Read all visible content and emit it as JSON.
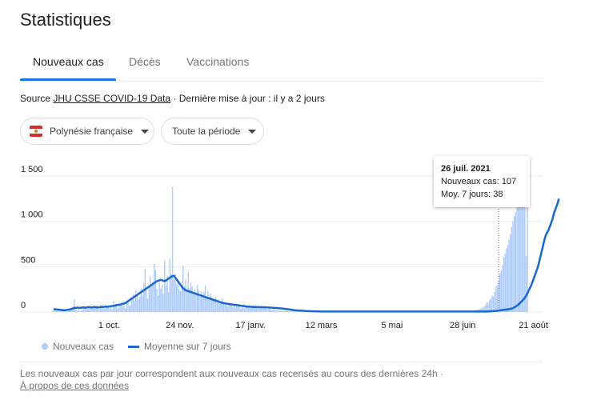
{
  "page": {
    "title": "Statistiques"
  },
  "tabs": [
    {
      "label": "Nouveaux cas",
      "active": true
    },
    {
      "label": "Décès",
      "active": false
    },
    {
      "label": "Vaccinations",
      "active": false
    }
  ],
  "source": {
    "prefix": "Source",
    "link": "JHU CSSE COVID-19 Data",
    "suffix": "· Dernière mise à jour : il y a 2 jours"
  },
  "filters": {
    "region": "Polynésie française",
    "region_flag_icon": "flag-french-polynesia-icon",
    "period": "Toute la période"
  },
  "tooltip": {
    "date": "26 juil. 2021",
    "cases_line": "Nouveaux cas: 107",
    "avg_line": "Moy. 7 jours: 38"
  },
  "legend": {
    "cases": "Nouveaux cas",
    "average": "Moyenne sur 7 jours"
  },
  "footer": {
    "text": "Les nouveaux cas par jour correspondent aux nouveaux cas recensés au cours des dernières 24h  ·",
    "link": "À propos de ces données"
  },
  "colors": {
    "bar": "#aecbfa",
    "line": "#1967d2",
    "accent": "#1a73e8"
  },
  "chart_data": {
    "type": "bar",
    "ylim": [
      0,
      1500
    ],
    "yticks": [
      {
        "value": 0,
        "label": "0"
      },
      {
        "value": 500,
        "label": "500"
      },
      {
        "value": 1000,
        "label": "1 000"
      },
      {
        "value": 1500,
        "label": "1 500"
      }
    ],
    "xticks": [
      {
        "index": 43,
        "label": "1 oct."
      },
      {
        "index": 97,
        "label": "24 nov."
      },
      {
        "index": 151,
        "label": "17 janv."
      },
      {
        "index": 205,
        "label": "12 mars"
      },
      {
        "index": 259,
        "label": "5 mai"
      },
      {
        "index": 313,
        "label": "28 juin"
      },
      {
        "index": 367,
        "label": "21 août"
      }
    ],
    "hover_index": 340,
    "series": [
      {
        "name": "Nouveaux cas",
        "kind": "bar",
        "values": [
          10,
          15,
          40,
          20,
          30,
          25,
          10,
          35,
          20,
          15,
          5,
          10,
          30,
          40,
          25,
          60,
          140,
          30,
          20,
          40,
          10,
          15,
          20,
          50,
          60,
          40,
          30,
          55,
          40,
          60,
          35,
          70,
          40,
          50,
          45,
          30,
          80,
          40,
          60,
          35,
          75,
          50,
          60,
          40,
          55,
          30,
          120,
          60,
          90,
          40,
          70,
          80,
          110,
          60,
          95,
          40,
          100,
          130,
          70,
          80,
          160,
          200,
          120,
          240,
          180,
          140,
          170,
          260,
          190,
          320,
          480,
          250,
          150,
          280,
          390,
          310,
          330,
          530,
          460,
          250,
          180,
          330,
          260,
          300,
          200,
          570,
          290,
          400,
          220,
          590,
          420,
          1380,
          360,
          420,
          300,
          330,
          250,
          230,
          260,
          510,
          280,
          360,
          240,
          450,
          260,
          320,
          280,
          200,
          250,
          210,
          300,
          240,
          190,
          230,
          180,
          220,
          290,
          170,
          230,
          150,
          200,
          160,
          150,
          120,
          170,
          100,
          140,
          90,
          120,
          150,
          100,
          80,
          90,
          60,
          80,
          70,
          90,
          60,
          70,
          50,
          80,
          60,
          90,
          40,
          60,
          50,
          40,
          60,
          50,
          45,
          60,
          40,
          50,
          70,
          60,
          50,
          60,
          40,
          50,
          60,
          50,
          40,
          45,
          30,
          35,
          40,
          30,
          25,
          30,
          25,
          20,
          20,
          15,
          20,
          15,
          15,
          10,
          12,
          10,
          10,
          8,
          8,
          10,
          8,
          6,
          6,
          7,
          6,
          5,
          5,
          6,
          5,
          4,
          5,
          4,
          5,
          4,
          3,
          4,
          3,
          5,
          4,
          3,
          3,
          4,
          3,
          3,
          2,
          3,
          3,
          2,
          2,
          3,
          2,
          2,
          3,
          2,
          2,
          3,
          2,
          3,
          2,
          2,
          3,
          2,
          3,
          2,
          2,
          3,
          4,
          3,
          2,
          3,
          2,
          3,
          2,
          3,
          3,
          4,
          2,
          3,
          2,
          3,
          2,
          2,
          3,
          2,
          3,
          2,
          3,
          2,
          2,
          3,
          2,
          2,
          3,
          3,
          2,
          2,
          2,
          3,
          2,
          2,
          3,
          2,
          2,
          3,
          2,
          2,
          3,
          2,
          3,
          2,
          2,
          2,
          3,
          2,
          2,
          3,
          2,
          2,
          3,
          2,
          2,
          2,
          3,
          2,
          2,
          3,
          2,
          2,
          2,
          3,
          2,
          2,
          3,
          2,
          2,
          2,
          3,
          2,
          2,
          3,
          2,
          2,
          3,
          2,
          2,
          2,
          3,
          3,
          4,
          3,
          5,
          4,
          6,
          5,
          7,
          8,
          10,
          12,
          15,
          18,
          22,
          25,
          30,
          35,
          40,
          50,
          60,
          80,
          107,
          100,
          130,
          150,
          180,
          170,
          220,
          280,
          300,
          350,
          420,
          460,
          520,
          600,
          640,
          700,
          740,
          800,
          860,
          940,
          1000,
          1060,
          1100,
          1150,
          1200,
          1250,
          1280,
          1300,
          1280,
          1300,
          620,
          1300
        ]
      },
      {
        "name": "Moyenne sur 7 jours",
        "kind": "line",
        "values": [
          30,
          30,
          30,
          28,
          27,
          25,
          22,
          20,
          20,
          20,
          22,
          25,
          27,
          30,
          35,
          40,
          45,
          45,
          48,
          48,
          45,
          46,
          50,
          52,
          48,
          50,
          52,
          55,
          52,
          50,
          52,
          55,
          52,
          54,
          50,
          52,
          54,
          56,
          55,
          58,
          60,
          58,
          60,
          62,
          64,
          66,
          68,
          72,
          75,
          78,
          80,
          82,
          85,
          90,
          95,
          100,
          110,
          120,
          130,
          140,
          150,
          160,
          170,
          180,
          190,
          200,
          210,
          220,
          230,
          240,
          250,
          260,
          270,
          280,
          290,
          300,
          310,
          320,
          330,
          340,
          345,
          350,
          355,
          350,
          345,
          340,
          350,
          360,
          370,
          380,
          390,
          395,
          400,
          380,
          360,
          340,
          320,
          300,
          280,
          260,
          250,
          240,
          235,
          230,
          225,
          220,
          215,
          210,
          205,
          200,
          195,
          190,
          185,
          180,
          175,
          170,
          165,
          160,
          155,
          150,
          145,
          140,
          135,
          130,
          125,
          120,
          115,
          110,
          105,
          100,
          98,
          95,
          92,
          90,
          88,
          86,
          84,
          82,
          80,
          78,
          76,
          74,
          72,
          70,
          68,
          66,
          64,
          62,
          60,
          58,
          58,
          57,
          56,
          55,
          55,
          55,
          54,
          54,
          54,
          53,
          53,
          52,
          52,
          51,
          50,
          49,
          48,
          47,
          46,
          45,
          44,
          43,
          42,
          41,
          40,
          38,
          36,
          34,
          32,
          30,
          28,
          26,
          24,
          22,
          20,
          19,
          18,
          17,
          16,
          15,
          14,
          13,
          12,
          11,
          10,
          10,
          9,
          9,
          8,
          8,
          8,
          7,
          7,
          7,
          6,
          6,
          6,
          6,
          6,
          5,
          5,
          5,
          5,
          5,
          5,
          5,
          5,
          5,
          5,
          5,
          5,
          5,
          5,
          5,
          5,
          5,
          5,
          5,
          5,
          5,
          5,
          5,
          5,
          5,
          5,
          5,
          5,
          5,
          5,
          5,
          5,
          5,
          5,
          5,
          5,
          5,
          5,
          5,
          5,
          5,
          5,
          5,
          5,
          5,
          5,
          5,
          5,
          5,
          5,
          5,
          5,
          5,
          5,
          5,
          5,
          5,
          5,
          5,
          5,
          5,
          5,
          5,
          5,
          5,
          5,
          5,
          5,
          5,
          5,
          5,
          5,
          5,
          5,
          5,
          5,
          5,
          5,
          5,
          5,
          5,
          5,
          5,
          5,
          5,
          5,
          5,
          5,
          5,
          5,
          5,
          5,
          5,
          5,
          5,
          5,
          5,
          5,
          5,
          5,
          5,
          5,
          5,
          5,
          5,
          5,
          5,
          5,
          5,
          5,
          5,
          5,
          5,
          5,
          5,
          5,
          5,
          5,
          5,
          5,
          5,
          5,
          6,
          6,
          7,
          8,
          9,
          10,
          11,
          12,
          14,
          16,
          18,
          20,
          22,
          24,
          26,
          28,
          30,
          33,
          36,
          38,
          45,
          52,
          60,
          70,
          82,
          95,
          110,
          125,
          140,
          160,
          180,
          210,
          240,
          270,
          300,
          340,
          380,
          420,
          460,
          500,
          560,
          620,
          680,
          740,
          800,
          850,
          880,
          900,
          940,
          980,
          1020,
          1080,
          1120,
          1160,
          1200,
          1250
        ]
      }
    ]
  }
}
